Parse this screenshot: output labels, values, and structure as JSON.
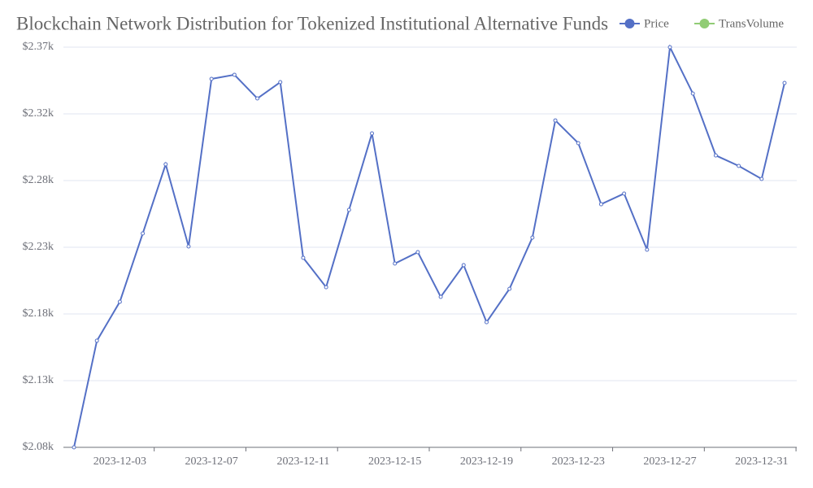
{
  "chart_data": {
    "type": "line",
    "title": "Blockchain Network Distribution for Tokenized Institutional Alternative Funds",
    "x": [
      "2023-12-01",
      "2023-12-02",
      "2023-12-03",
      "2023-12-04",
      "2023-12-05",
      "2023-12-06",
      "2023-12-07",
      "2023-12-08",
      "2023-12-09",
      "2023-12-10",
      "2023-12-11",
      "2023-12-12",
      "2023-12-13",
      "2023-12-14",
      "2023-12-15",
      "2023-12-16",
      "2023-12-17",
      "2023-12-18",
      "2023-12-19",
      "2023-12-20",
      "2023-12-21",
      "2023-12-22",
      "2023-12-23",
      "2023-12-24",
      "2023-12-25",
      "2023-12-26",
      "2023-12-27",
      "2023-12-28",
      "2023-12-29",
      "2023-12-30",
      "2023-12-31",
      "2024-01-01"
    ],
    "series": [
      {
        "name": "Price",
        "color": "#5470c6",
        "values": [
          2080,
          2158.0,
          2186.5,
          2236.5,
          2287.1,
          2227.0,
          2349.6,
          2352.6,
          2335.3,
          2347.2,
          2218.7,
          2197.2,
          2253.8,
          2309.7,
          2214.5,
          2222.8,
          2190.1,
          2213.3,
          2171.6,
          2196.0,
          2233.5,
          2319.2,
          2302.6,
          2257.9,
          2265.7,
          2224.6,
          2372.8,
          2338.9,
          2293.6,
          2285.9,
          2276.4,
          2346.6
        ]
      },
      {
        "name": "TransVolume",
        "color": "#91cc75",
        "values": [
          null,
          null,
          null,
          null,
          null,
          null,
          null,
          null,
          null,
          null,
          null,
          null,
          null,
          null,
          null,
          null,
          null,
          null,
          null,
          null,
          null,
          null,
          null,
          null,
          null,
          null,
          null,
          null,
          null,
          null,
          null,
          null
        ]
      }
    ],
    "ylim": [
      2080,
      2372.8
    ],
    "yticks": [
      {
        "value": 2080,
        "label": "$2.08k"
      },
      {
        "value": 2128.8,
        "label": "$2.13k"
      },
      {
        "value": 2177.6,
        "label": "$2.18k"
      },
      {
        "value": 2226.4,
        "label": "$2.23k"
      },
      {
        "value": 2275.2,
        "label": "$2.28k"
      },
      {
        "value": 2324,
        "label": "$2.32k"
      },
      {
        "value": 2372.8,
        "label": "$2.37k"
      }
    ],
    "grid": true
  }
}
